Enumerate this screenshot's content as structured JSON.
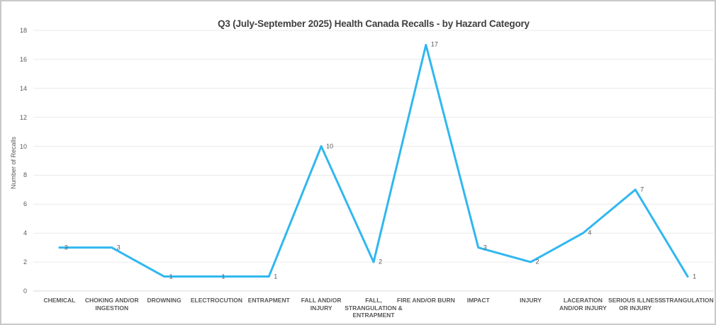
{
  "chart_data": {
    "type": "line",
    "title": "Q3 (July-September 2025) Health Canada Recalls - by Hazard Category",
    "xlabel": "",
    "ylabel": "Number of Recalls",
    "ylim": [
      0,
      18
    ],
    "y_ticks": [
      0,
      2,
      4,
      6,
      8,
      10,
      12,
      14,
      16,
      18
    ],
    "grid": true,
    "legend": false,
    "data_labels_visible": true,
    "categories": [
      "CHEMICAL",
      "CHOKING AND/OR\nINGESTION",
      "DROWNING",
      "ELECTROCUTION",
      "ENTRAPMENT",
      "FALL AND/OR\nINJURY",
      "FALL,\nSTRANGULATION &\nENTRAPMENT",
      "FIRE AND/OR BURN",
      "IMPACT",
      "INJURY",
      "LACERATION\nAND/OR INJURY",
      "SERIOUS ILLNESS\nOR INJURY",
      "STRANGULATION"
    ],
    "values": [
      3,
      3,
      1,
      1,
      1,
      10,
      2,
      17,
      3,
      2,
      4,
      7,
      1
    ]
  },
  "colors": {
    "line": "#30B7F0",
    "gridline": "#E9E9E9",
    "axis_line": "#D9D9D9",
    "label_text": "#595959",
    "title_text": "#404040"
  }
}
